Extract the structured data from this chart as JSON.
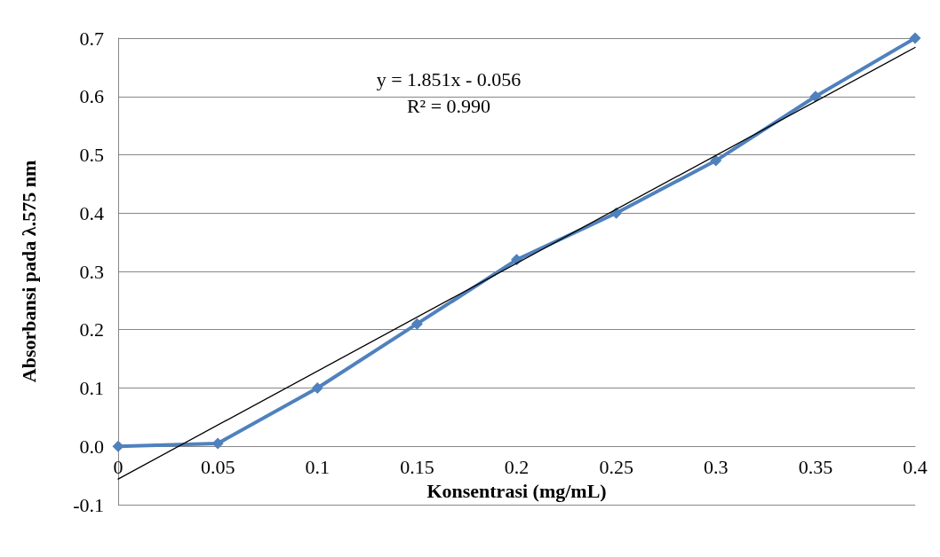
{
  "chart_data": {
    "type": "line",
    "xlabel": "Konsentrasi (mg/mL)",
    "ylabel": "Absorbansi pada λ.575 nm",
    "annotations": [
      "y = 1.851x - 0.056",
      "R² = 0.990"
    ],
    "x": [
      0,
      0.05,
      0.1,
      0.15,
      0.2,
      0.25,
      0.3,
      0.35,
      0.4
    ],
    "series": [
      {
        "color": "#4f81bd",
        "values": [
          0.0,
          0.005,
          0.1,
          0.21,
          0.32,
          0.4,
          0.49,
          0.6,
          0.7
        ]
      },
      {
        "type": "line",
        "x": [
          0,
          0.4
        ],
        "values": [
          -0.056,
          0.684
        ],
        "color": "#000000",
        "marker": "none"
      }
    ],
    "xlim": [
      0,
      0.4
    ],
    "xticks": [
      0,
      0.05,
      0.1,
      0.15,
      0.2,
      0.25,
      0.3,
      0.35,
      0.4
    ],
    "ylim": [
      -0.1,
      0.7
    ],
    "yticks": [
      -0.1,
      {
        "value": 0,
        "label": "0.0"
      },
      0.1,
      0.2,
      0.3,
      0.4,
      0.5,
      0.6,
      0.7
    ],
    "grid": "y",
    "marker": "diamond",
    "line_style": "solid"
  }
}
